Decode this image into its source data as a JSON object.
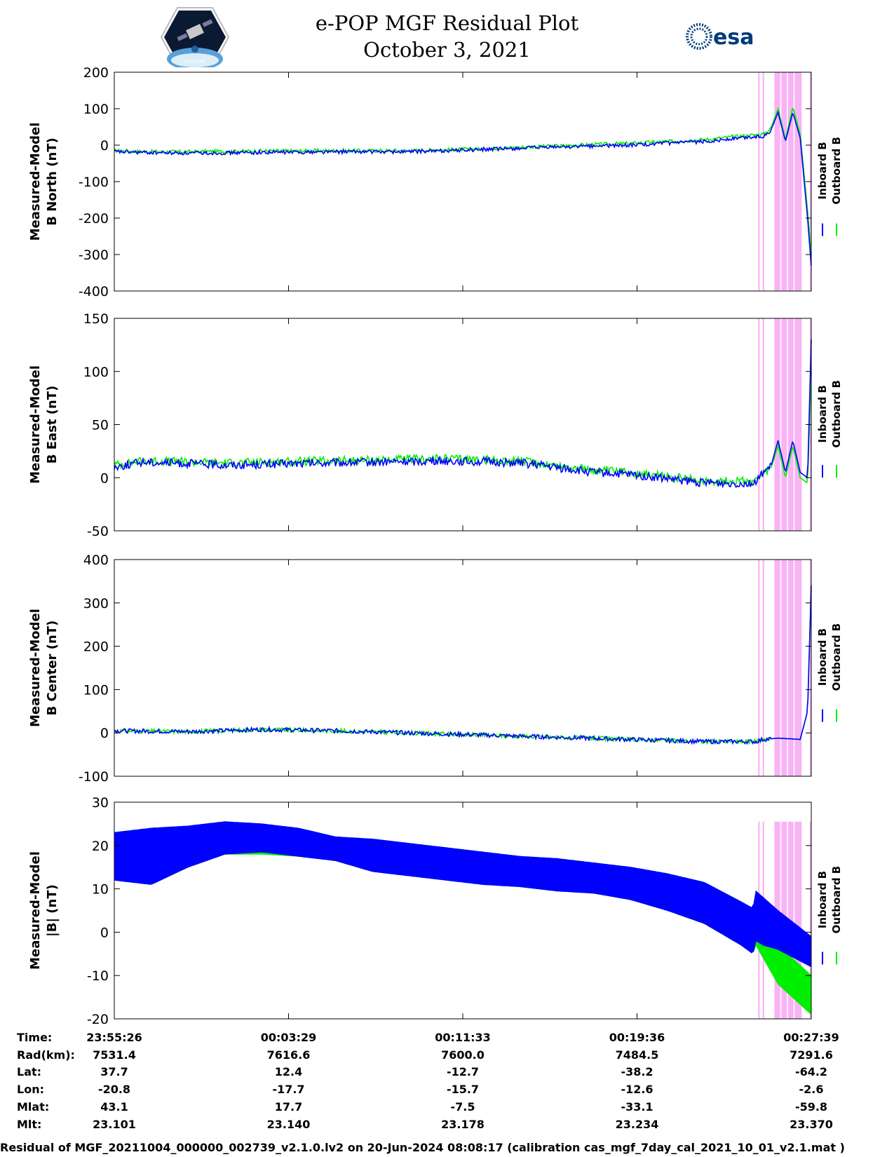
{
  "header": {
    "title_line1": "e-POP MGF Residual Plot",
    "title_line2": "October 3, 2021",
    "logo_left": "CASSIOPE",
    "logo_right": "esa"
  },
  "colors": {
    "inboard": "#0000ff",
    "outboard": "#00ee00",
    "highlight": "#f8b3f5"
  },
  "legend": [
    "Inboard B",
    "Outboard B"
  ],
  "chart_data": [
    {
      "type": "line",
      "ylabel": [
        "Measured-Model",
        "B North (nT)"
      ],
      "ylim": [
        -400,
        200
      ],
      "yticks": [
        200,
        100,
        0,
        -100,
        -200,
        -300,
        -400
      ],
      "series": [
        {
          "name": "Inboard B",
          "x": [
            0,
            40,
            100,
            200,
            300,
            400,
            500,
            600,
            700,
            800,
            850,
            880,
            890,
            900,
            910,
            920,
            930,
            940,
            945
          ],
          "values": [
            -18,
            -20,
            -22,
            -20,
            -18,
            -18,
            -12,
            -5,
            0,
            10,
            20,
            25,
            40,
            90,
            10,
            90,
            20,
            -200,
            -330
          ]
        },
        {
          "name": "Outboard B",
          "x": [
            0,
            40,
            100,
            200,
            300,
            400,
            500,
            600,
            700,
            800,
            850,
            880,
            890,
            900,
            910,
            920,
            930,
            940,
            945
          ],
          "values": [
            -15,
            -18,
            -18,
            -16,
            -15,
            -15,
            -10,
            -2,
            5,
            15,
            25,
            30,
            45,
            100,
            15,
            105,
            30,
            -180,
            -300
          ]
        }
      ],
      "highlight_spans": [
        [
          873,
          875
        ],
        [
          879,
          881
        ],
        [
          895,
          932
        ],
        [
          943,
          945
        ]
      ]
    },
    {
      "type": "line",
      "ylabel": [
        "Measured-Model",
        "B East (nT)"
      ],
      "ylim": [
        -50,
        150
      ],
      "yticks": [
        150,
        100,
        50,
        0,
        -50
      ],
      "series": [
        {
          "name": "Inboard B",
          "x": [
            0,
            40,
            150,
            300,
            450,
            550,
            650,
            700,
            800,
            870,
            880,
            890,
            900,
            910,
            920,
            930,
            940,
            945
          ],
          "values": [
            10,
            15,
            12,
            14,
            16,
            14,
            5,
            3,
            -5,
            -5,
            5,
            10,
            35,
            5,
            35,
            5,
            0,
            130
          ]
        },
        {
          "name": "Outboard B",
          "x": [
            0,
            40,
            150,
            300,
            450,
            550,
            650,
            700,
            800,
            870,
            880,
            890,
            900,
            910,
            920,
            930,
            940,
            945
          ],
          "values": [
            12,
            16,
            14,
            16,
            18,
            16,
            7,
            5,
            -3,
            -3,
            3,
            8,
            30,
            0,
            30,
            0,
            -5,
            100
          ]
        }
      ],
      "highlight_spans": [
        [
          873,
          875
        ],
        [
          879,
          881
        ],
        [
          895,
          932
        ],
        [
          943,
          945
        ]
      ]
    },
    {
      "type": "line",
      "ylabel": [
        "Measured-Model",
        "B Center (nT)"
      ],
      "ylim": [
        -100,
        400
      ],
      "yticks": [
        400,
        300,
        200,
        100,
        0,
        -100
      ],
      "series": [
        {
          "name": "Inboard B",
          "x": [
            0,
            100,
            200,
            300,
            400,
            500,
            600,
            700,
            800,
            870,
            880,
            900,
            930,
            940,
            945
          ],
          "values": [
            5,
            3,
            8,
            5,
            0,
            -5,
            -10,
            -15,
            -20,
            -20,
            -15,
            -12,
            -15,
            50,
            340
          ]
        },
        {
          "name": "Outboard B",
          "x": [
            0,
            100,
            200,
            300,
            400,
            500,
            600,
            700,
            800,
            870,
            880,
            900,
            930,
            940,
            945
          ],
          "values": [
            5,
            3,
            8,
            5,
            0,
            -5,
            -10,
            -15,
            -20,
            -20,
            -15,
            -12,
            -15,
            50,
            330
          ]
        }
      ],
      "highlight_spans": [
        [
          873,
          875
        ],
        [
          879,
          881
        ],
        [
          895,
          932
        ],
        [
          943,
          945
        ]
      ]
    },
    {
      "type": "area",
      "ylabel": [
        "Measured-Model",
        "|B| (nT)"
      ],
      "ylim": [
        -20,
        30
      ],
      "yticks": [
        30,
        20,
        10,
        0,
        -10,
        -20
      ],
      "series": [
        {
          "name": "Inboard B",
          "x": [
            0,
            50,
            100,
            150,
            200,
            250,
            300,
            350,
            400,
            450,
            500,
            550,
            600,
            650,
            700,
            750,
            800,
            850,
            866,
            870,
            880,
            900,
            945
          ],
          "upper": [
            23,
            24,
            24.5,
            25.5,
            25,
            24,
            22,
            21.5,
            20.5,
            19.5,
            18.5,
            17.5,
            17,
            16,
            15,
            13.5,
            11.5,
            7,
            5.5,
            9.5,
            8,
            5,
            -1
          ],
          "lower": [
            12,
            11,
            15,
            18,
            18.5,
            17.5,
            16.5,
            14,
            13,
            12,
            11,
            10.5,
            9.5,
            9,
            7.5,
            5,
            2,
            -3,
            -5,
            -2,
            -3,
            -4,
            -8
          ]
        },
        {
          "name": "Outboard B",
          "x": [
            0,
            50,
            100,
            150,
            200,
            250,
            300,
            350,
            400,
            450,
            500,
            550,
            600,
            650,
            700,
            750,
            800,
            850,
            866,
            870,
            880,
            900,
            945
          ],
          "upper": [
            23,
            24,
            24.5,
            25.5,
            25,
            24,
            22,
            21.5,
            20.5,
            19.5,
            18.5,
            17.5,
            17,
            16,
            15,
            13.5,
            11.5,
            7,
            5.5,
            0,
            -1,
            -3,
            -10
          ],
          "lower": [
            12,
            11,
            15,
            18,
            18,
            17.5,
            16.5,
            14,
            13,
            12,
            11,
            10.5,
            9.5,
            9,
            7.5,
            5,
            2,
            -3,
            -5,
            -3,
            -6,
            -12,
            -19
          ]
        }
      ],
      "highlight_spans": [
        [
          873,
          875
        ],
        [
          879,
          881
        ],
        [
          895,
          932
        ],
        [
          943,
          945
        ]
      ]
    }
  ],
  "ephemeris": {
    "row_labels": [
      "Time:",
      "Rad(km):",
      "Lat:",
      "Lon:",
      "Mlat:",
      "Mlt:"
    ],
    "columns": [
      [
        "23:55:26",
        "7531.4",
        "37.7",
        "-20.8",
        "43.1",
        "23.101"
      ],
      [
        "00:03:29",
        "7616.6",
        "12.4",
        "-17.7",
        "17.7",
        "23.140"
      ],
      [
        "00:11:33",
        "7600.0",
        "-12.7",
        "-15.7",
        "-7.5",
        "23.178"
      ],
      [
        "00:19:36",
        "7484.5",
        "-38.2",
        "-12.6",
        "-33.1",
        "23.234"
      ],
      [
        "00:27:39",
        "7291.6",
        "-64.2",
        "-2.6",
        "-59.8",
        "23.370"
      ]
    ]
  },
  "footer": "Residual of MGF_20211004_000000_002739_v2.1.0.lv2 on 20-Jun-2024 08:08:17 (calibration cas_mgf_7day_cal_2021_10_01_v2.1.mat )"
}
